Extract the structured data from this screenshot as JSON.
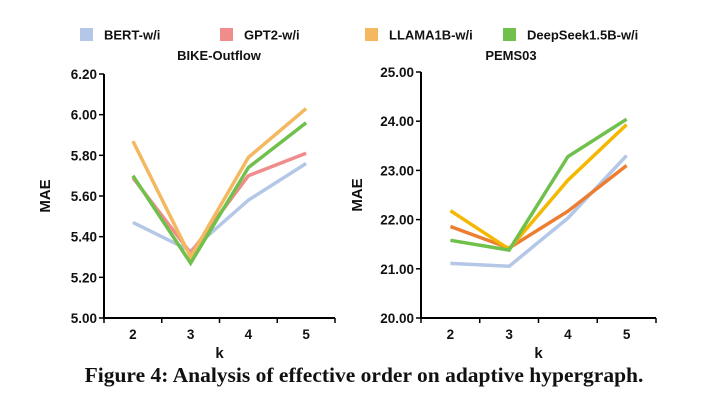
{
  "caption": "Figure 4: Analysis of effective order on adaptive hypergraph.",
  "legend": [
    {
      "label": "BERT-w/i",
      "color": "#b4c7e7"
    },
    {
      "label": "GPT2-w/i",
      "color": "#f08c8c"
    },
    {
      "label": "LLAMA1B-w/i",
      "color": "#f4b860"
    },
    {
      "label": "DeepSeek1.5B-w/i",
      "color": "#70c04c"
    }
  ],
  "chart_data": [
    {
      "type": "line",
      "title": "BIKE-Outflow",
      "xlabel": "k",
      "ylabel": "MAE",
      "categories": [
        "2",
        "3",
        "4",
        "5"
      ],
      "ylim": [
        5.0,
        6.2
      ],
      "yticks": [
        "5.00",
        "5.20",
        "5.40",
        "5.60",
        "5.80",
        "6.00",
        "6.20"
      ],
      "yticks_values": [
        5.0,
        5.2,
        5.4,
        5.6,
        5.8,
        6.0,
        6.2
      ],
      "grid": false,
      "legend_position": "top",
      "series": [
        {
          "name": "BERT-w/i",
          "color": "#b4c7e7",
          "values": [
            5.47,
            5.33,
            5.58,
            5.76
          ]
        },
        {
          "name": "GPT2-w/i",
          "color": "#f08c8c",
          "values": [
            5.69,
            5.32,
            5.7,
            5.81
          ]
        },
        {
          "name": "LLAMA1B-w/i",
          "color": "#f4b860",
          "values": [
            5.87,
            5.3,
            5.79,
            6.03
          ]
        },
        {
          "name": "DeepSeek1.5B-w/i",
          "color": "#70c04c",
          "values": [
            5.7,
            5.27,
            5.74,
            5.96
          ]
        }
      ]
    },
    {
      "type": "line",
      "title": "PEMS03",
      "xlabel": "k",
      "ylabel": "MAE",
      "categories": [
        "2",
        "3",
        "4",
        "5"
      ],
      "ylim": [
        20.0,
        25.0
      ],
      "yticks": [
        "20.00",
        "21.00",
        "22.00",
        "23.00",
        "24.00",
        "25.00"
      ],
      "yticks_values": [
        20,
        21,
        22,
        23,
        24,
        25
      ],
      "grid": false,
      "legend_position": "top",
      "series": [
        {
          "name": "BERT-w/i",
          "color": "#b4c7e7",
          "values": [
            21.11,
            21.05,
            22.03,
            23.3
          ]
        },
        {
          "name": "GPT2-w/i",
          "color": "#ed7d31",
          "values": [
            21.86,
            21.42,
            22.17,
            23.1
          ]
        },
        {
          "name": "LLAMA1B-w/i",
          "color": "#f5b800",
          "values": [
            22.18,
            21.4,
            22.8,
            23.93
          ]
        },
        {
          "name": "DeepSeek1.5B-w/i",
          "color": "#70c04c",
          "values": [
            21.58,
            21.38,
            23.28,
            24.04
          ]
        }
      ]
    }
  ]
}
